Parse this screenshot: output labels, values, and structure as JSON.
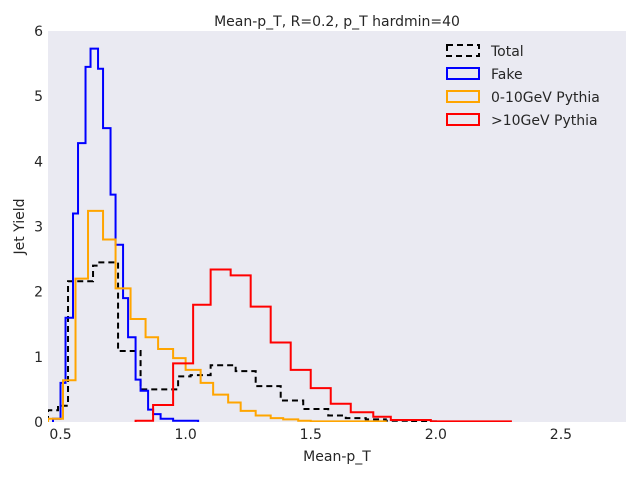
{
  "chart_data": {
    "type": "step-histogram",
    "title": "Mean-p_T, R=0.2, p_T hardmin=40",
    "xlabel": "Mean-p_T",
    "ylabel": "Jet Yield",
    "xlim": [
      0.45,
      2.76
    ],
    "ylim": [
      0,
      6
    ],
    "xticks": [
      0.5,
      1.0,
      1.5,
      2.0,
      2.5
    ],
    "xtick_labels": [
      "0.5",
      "1.0",
      "1.5",
      "2.0",
      "2.5"
    ],
    "yticks": [
      0,
      1,
      2,
      3,
      4,
      5,
      6
    ],
    "ytick_labels": [
      "0",
      "1",
      "2",
      "3",
      "4",
      "5",
      "6"
    ],
    "grid": false,
    "legend_position": "top-right",
    "series": [
      {
        "name": "Total",
        "color": "#000000",
        "dashed": true,
        "edges": [
          0.45,
          0.49,
          0.53,
          0.55,
          0.63,
          0.65,
          0.73,
          0.75,
          0.82,
          0.83,
          0.92,
          0.97,
          1.02,
          1.1,
          1.2,
          1.28,
          1.38,
          1.47,
          1.57,
          1.64,
          1.72,
          1.8,
          1.9,
          2.0
        ],
        "values": [
          0.18,
          0.25,
          2.16,
          2.16,
          2.4,
          2.45,
          1.09,
          1.09,
          0.5,
          0.5,
          0.5,
          0.7,
          0.72,
          0.87,
          0.78,
          0.55,
          0.33,
          0.2,
          0.1,
          0.06,
          0.04,
          0.02,
          0.01
        ]
      },
      {
        "name": "Fake",
        "color": "#0000ff",
        "dashed": false,
        "edges": [
          0.47,
          0.5,
          0.52,
          0.55,
          0.57,
          0.6,
          0.62,
          0.65,
          0.67,
          0.7,
          0.72,
          0.75,
          0.77,
          0.8,
          0.82,
          0.85,
          0.87,
          0.9,
          0.95,
          1.05
        ],
        "values": [
          0.05,
          0.6,
          1.6,
          3.2,
          4.28,
          5.45,
          5.73,
          5.42,
          4.51,
          3.49,
          2.72,
          1.9,
          1.3,
          0.65,
          0.48,
          0.19,
          0.12,
          0.05,
          0.02
        ]
      },
      {
        "name": "0-10GeV Pythia",
        "color": "#ffa500",
        "dashed": false,
        "edges": [
          0.45,
          0.51,
          0.56,
          0.61,
          0.67,
          0.72,
          0.78,
          0.84,
          0.89,
          0.95,
          1.0,
          1.06,
          1.11,
          1.17,
          1.22,
          1.28,
          1.34,
          1.39,
          1.45,
          1.5,
          1.8
        ],
        "values": [
          0.05,
          0.64,
          2.2,
          3.24,
          2.8,
          2.05,
          1.58,
          1.3,
          1.12,
          0.98,
          0.8,
          0.6,
          0.42,
          0.3,
          0.17,
          0.1,
          0.06,
          0.04,
          0.02,
          0.01
        ]
      },
      {
        "name": ">10GeV Pythia",
        "color": "#ff0000",
        "dashed": false,
        "edges": [
          0.8,
          0.87,
          0.95,
          1.03,
          1.1,
          1.18,
          1.26,
          1.34,
          1.42,
          1.5,
          1.58,
          1.66,
          1.75,
          1.82,
          1.98,
          2.3
        ],
        "values": [
          0.02,
          0.26,
          0.9,
          1.8,
          2.34,
          2.25,
          1.77,
          1.22,
          0.8,
          0.52,
          0.28,
          0.15,
          0.08,
          0.03,
          0.01
        ]
      }
    ]
  }
}
